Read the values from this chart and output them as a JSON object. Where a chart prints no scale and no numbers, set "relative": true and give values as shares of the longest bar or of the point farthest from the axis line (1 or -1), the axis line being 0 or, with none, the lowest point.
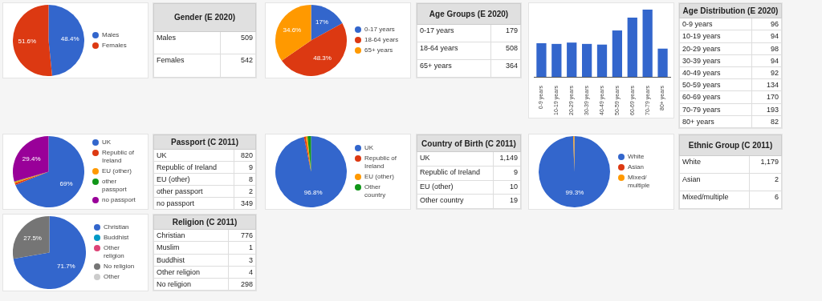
{
  "chart_data": [
    {
      "type": "pie",
      "categories": [
        "Males",
        "Females"
      ],
      "values": [
        48.4,
        51.6
      ],
      "colors": [
        "#3366cc",
        "#dc3912"
      ],
      "value_labels": [
        "48.4%",
        "51.6%"
      ],
      "legend": "right"
    },
    {
      "type": "other",
      "title": "Gender (E 2020)",
      "categories": [
        "Males",
        "Females"
      ],
      "values": [
        509,
        542
      ],
      "data_labels": true
    },
    {
      "type": "pie",
      "categories": [
        "0-17 years",
        "18-64 years",
        "65+ years"
      ],
      "values": [
        17,
        48.3,
        34.6
      ],
      "colors": [
        "#3366cc",
        "#dc3912",
        "#ff9900"
      ],
      "value_labels": [
        "17%",
        "48.3%",
        "34.6%"
      ],
      "legend": "right"
    },
    {
      "type": "other",
      "title": "Age Groups (E 2020)",
      "categories": [
        "0-17 years",
        "18-64 years",
        "65+ years"
      ],
      "values": [
        179,
        508,
        364
      ],
      "data_labels": true
    },
    {
      "type": "bar",
      "relative": true,
      "categories": [
        "0-9 years",
        "10-19 years",
        "20-29 years",
        "30-39 years",
        "40-49 years",
        "50-59 years",
        "60-69 years",
        "70-79 years",
        "80+ years"
      ],
      "values": [
        0.5,
        0.49,
        0.51,
        0.49,
        0.48,
        0.69,
        0.88,
        1,
        0.42
      ],
      "color": "#3366cc"
    },
    {
      "type": "other",
      "title": "Age Distribution (E 2020)",
      "categories": [
        "0-9 years",
        "10-19 years",
        "20-29 years",
        "30-39 years",
        "40-49 years",
        "50-59 years",
        "60-69 years",
        "70-79 years",
        "80+ years"
      ],
      "values": [
        96,
        94,
        98,
        94,
        92,
        134,
        170,
        193,
        82
      ],
      "data_labels": true
    },
    {
      "type": "pie",
      "categories": [
        "UK",
        "Republic of Ireland",
        "EU (other)",
        "other passport",
        "no passport"
      ],
      "values": [
        69,
        0.8,
        0.6,
        0.2,
        29.4
      ],
      "colors": [
        "#3366cc",
        "#dc3912",
        "#ff9900",
        "#109618",
        "#990099"
      ],
      "value_labels": [
        "69%",
        null,
        null,
        null,
        "29.4%"
      ],
      "legend": "right"
    },
    {
      "type": "other",
      "title": "Passport (C 2011)",
      "categories": [
        "UK",
        "Republic of Ireland",
        "EU (other)",
        "other passport",
        "no passport"
      ],
      "values": [
        820,
        9,
        8,
        2,
        349
      ],
      "data_labels": true
    },
    {
      "type": "pie",
      "categories": [
        "UK",
        "Republic of Ireland",
        "EU (other)",
        "Other country"
      ],
      "values": [
        96.8,
        0.8,
        0.8,
        1.6
      ],
      "colors": [
        "#3366cc",
        "#dc3912",
        "#ff9900",
        "#109618"
      ],
      "value_labels": [
        "96.8%",
        null,
        null,
        null
      ],
      "legend": "right"
    },
    {
      "type": "other",
      "title": "Country of Birth (C 2011)",
      "categories": [
        "UK",
        "Republic of Ireland",
        "EU (other)",
        "Other country"
      ],
      "value_labels": [
        "1,149",
        "9",
        "10",
        "19"
      ]
    },
    {
      "type": "pie",
      "categories": [
        "White",
        "Asian",
        "Mixed/ multiple"
      ],
      "values": [
        99.3,
        null,
        0.5
      ],
      "colors": [
        "#3366cc",
        "#dc3912",
        "#ff9900"
      ],
      "value_labels": [
        "99.3%",
        null,
        null
      ],
      "legend": "right"
    },
    {
      "type": "other",
      "title": "Ethnic Group (C 2011)",
      "categories": [
        "White",
        "Asian",
        "Mixed/multiple"
      ],
      "value_labels": [
        "1,179",
        "2",
        "6"
      ]
    },
    {
      "type": "pie",
      "categories": [
        "Christian",
        "Buddhist",
        "Other religion",
        "No religion",
        "Other"
      ],
      "values": [
        71.7,
        null,
        null,
        27.5,
        null
      ],
      "colors": [
        "#3366cc",
        "#0099c6",
        "#dd4477",
        "#757575",
        "#cccccc"
      ],
      "value_labels": [
        "71.7%",
        null,
        null,
        "27.5%",
        null
      ],
      "legend": "right"
    },
    {
      "type": "other",
      "title": "Religion (C 2011)",
      "categories": [
        "Christian",
        "Muslim",
        "Buddhist",
        "Other religion",
        "No religion"
      ],
      "values": [
        776,
        1,
        3,
        4,
        298
      ],
      "data_labels": true
    }
  ]
}
